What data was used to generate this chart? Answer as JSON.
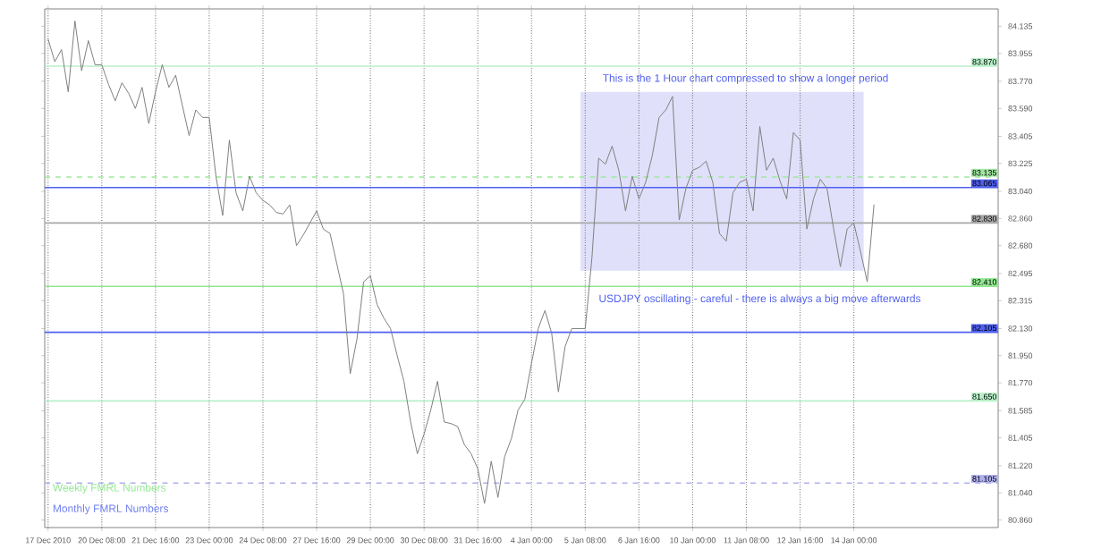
{
  "chart_data": {
    "type": "line",
    "categories": [
      "17 Dec 2010",
      null,
      null,
      null,
      null,
      null,
      null,
      null,
      "20 Dec 08:00",
      null,
      null,
      null,
      null,
      null,
      null,
      null,
      "21 Dec 16:00",
      null,
      null,
      null,
      null,
      null,
      null,
      null,
      "23 Dec 00:00",
      null,
      null,
      null,
      null,
      null,
      null,
      null,
      "24 Dec 08:00",
      null,
      null,
      null,
      null,
      null,
      null,
      null,
      "27 Dec 16:00",
      null,
      null,
      null,
      null,
      null,
      null,
      null,
      "29 Dec 00:00",
      null,
      null,
      null,
      null,
      null,
      null,
      null,
      "30 Dec 08:00",
      null,
      null,
      null,
      null,
      null,
      null,
      null,
      "31 Dec 16:00",
      null,
      null,
      null,
      null,
      null,
      null,
      null,
      "4 Jan 00:00",
      null,
      null,
      null,
      null,
      null,
      null,
      null,
      "5 Jan 08:00",
      null,
      null,
      null,
      null,
      null,
      null,
      null,
      "6 Jan 16:00",
      null,
      null,
      null,
      null,
      null,
      null,
      null,
      "10 Jan 00:00",
      null,
      null,
      null,
      null,
      null,
      null,
      null,
      "11 Jan 08:00",
      null,
      null,
      null,
      null,
      null,
      null,
      null,
      "12 Jan 16:00",
      null,
      null,
      null,
      null,
      null,
      null,
      null,
      "14 Jan 00:00",
      null,
      null,
      null
    ],
    "series": [
      {
        "color": "#808080",
        "values": [
          84.05,
          83.9,
          83.98,
          83.7,
          84.17,
          83.84,
          84.04,
          83.88,
          83.88,
          83.75,
          83.64,
          83.76,
          83.69,
          83.59,
          83.73,
          83.49,
          83.7,
          83.88,
          83.73,
          83.81,
          83.61,
          83.41,
          83.58,
          83.53,
          83.53,
          83.14,
          82.88,
          83.38,
          83.03,
          82.91,
          83.14,
          83.03,
          82.98,
          82.95,
          82.9,
          82.89,
          82.95,
          82.68,
          82.75,
          82.83,
          82.91,
          82.79,
          82.76,
          82.56,
          82.36,
          81.83,
          82.06,
          82.44,
          82.48,
          82.29,
          82.2,
          82.13,
          81.95,
          81.78,
          81.51,
          81.3,
          81.43,
          81.59,
          81.78,
          81.51,
          81.5,
          81.48,
          81.36,
          81.3,
          81.2,
          80.97,
          81.25,
          81.01,
          81.28,
          81.4,
          81.59,
          81.66,
          81.9,
          82.13,
          82.25,
          82.1,
          81.71,
          82.01,
          82.13,
          82.13,
          82.13,
          82.6,
          83.26,
          83.22,
          83.34,
          83.18,
          82.91,
          83.14,
          82.99,
          83.1,
          83.28,
          83.53,
          83.58,
          83.67,
          82.85,
          83.06,
          83.18,
          83.2,
          83.24,
          83.1,
          82.76,
          82.71,
          83.03,
          83.1,
          83.12,
          82.91,
          83.47,
          83.18,
          83.26,
          83.11,
          82.99,
          83.43,
          83.38,
          82.79,
          82.99,
          83.12,
          83.06,
          82.79,
          82.54,
          82.79,
          82.83,
          82.64,
          82.44,
          82.95
        ]
      }
    ],
    "ylim": [
      80.81,
      84.25
    ],
    "yticks": [
      {
        "value": 80.86,
        "label": "80.860"
      },
      {
        "value": 81.04,
        "label": "81.040"
      },
      {
        "value": 81.22,
        "label": "81.220"
      },
      {
        "value": 81.405,
        "label": "81.405"
      },
      {
        "value": 81.585,
        "label": "81.585"
      },
      {
        "value": 81.77,
        "label": "81.770"
      },
      {
        "value": 81.95,
        "label": "81.950"
      },
      {
        "value": 82.13,
        "label": "82.130"
      },
      {
        "value": 82.315,
        "label": "82.315"
      },
      {
        "value": 82.495,
        "label": "82.495"
      },
      {
        "value": 82.68,
        "label": "82.680"
      },
      {
        "value": 82.86,
        "label": "82.860"
      },
      {
        "value": 83.04,
        "label": "83.040"
      },
      {
        "value": 83.225,
        "label": "83.225"
      },
      {
        "value": 83.405,
        "label": "83.405"
      },
      {
        "value": 83.59,
        "label": "83.590"
      },
      {
        "value": 83.77,
        "label": "83.770"
      },
      {
        "value": 83.955,
        "label": "83.955"
      },
      {
        "value": 84.135,
        "label": "84.135"
      }
    ],
    "grid": "x",
    "ref_lines": [
      {
        "axis": "y",
        "value": 83.87,
        "label": "83.870",
        "color": "#b8f0c8"
      },
      {
        "axis": "y",
        "value": 83.135,
        "label": "83.135",
        "color": "#a0e8a0",
        "line_style": "dashed"
      },
      {
        "axis": "y",
        "value": 83.065,
        "label": "83.065",
        "color": "#5060f0"
      },
      {
        "axis": "y",
        "value": 82.83,
        "label": "82.830",
        "color": "#a8a8a8"
      },
      {
        "axis": "y",
        "value": 82.41,
        "label": "82.410",
        "color": "#90e890"
      },
      {
        "axis": "y",
        "value": 82.105,
        "label": "82.105",
        "color": "#5060f0"
      },
      {
        "axis": "y",
        "value": 81.65,
        "label": "81.650",
        "color": "#b8f0c8"
      },
      {
        "axis": "y",
        "value": 81.105,
        "label": "81.105",
        "color": "#b0b0f0",
        "line_style": "dashed"
      }
    ],
    "annotations": [
      "This is the 1 Hour chart compressed to show a longer period",
      "USDJPY oscillating - careful - there is always a big move afterwards",
      "Weekly FMRL Numbers",
      "Monthly FMRL Numbers"
    ]
  }
}
